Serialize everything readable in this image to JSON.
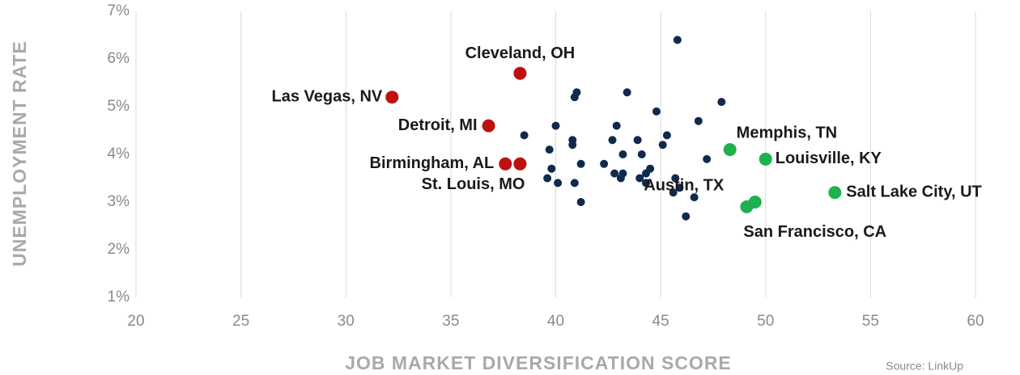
{
  "chart_data": {
    "type": "scatter",
    "x_label": "JOB MARKET DIVERSIFICATION SCORE",
    "y_label": "UNEMPLOYMENT RATE",
    "source": "Source: LinkUp",
    "xlim": [
      20,
      60
    ],
    "xticks": [
      20,
      25,
      30,
      35,
      40,
      45,
      50,
      55,
      60
    ],
    "ylim": [
      1,
      7
    ],
    "yticks": [
      {
        "value": 1,
        "label": "1%"
      },
      {
        "value": 2,
        "label": "2%"
      },
      {
        "value": 3,
        "label": "3%"
      },
      {
        "value": 4,
        "label": "4%"
      },
      {
        "value": 5,
        "label": "5%"
      },
      {
        "value": 6,
        "label": "6%"
      },
      {
        "value": 7,
        "label": "7%"
      }
    ],
    "grid": "x",
    "series": [
      {
        "color": "#0f2a4d",
        "x": [
          45.8,
          41.0,
          40.9,
          43.4,
          47.9,
          44.8,
          46.8,
          40.0,
          42.9,
          38.5,
          45.3,
          40.8,
          42.7,
          43.9,
          40.8,
          45.1,
          39.7,
          43.2,
          44.1,
          47.2,
          41.2,
          42.3,
          39.8,
          44.5,
          42.8,
          43.2,
          44.3,
          43.1,
          44.0,
          39.6,
          45.7,
          40.1,
          40.9,
          44.3,
          45.9,
          45.6,
          46.6,
          41.2,
          46.2
        ],
        "y": [
          6.4,
          5.3,
          5.2,
          5.3,
          5.1,
          4.9,
          4.7,
          4.6,
          4.6,
          4.4,
          4.4,
          4.3,
          4.3,
          4.3,
          4.2,
          4.2,
          4.1,
          4.0,
          4.0,
          3.9,
          3.8,
          3.8,
          3.7,
          3.7,
          3.6,
          3.6,
          3.6,
          3.5,
          3.5,
          3.5,
          3.5,
          3.4,
          3.4,
          3.4,
          3.3,
          3.2,
          3.1,
          3.0,
          2.7
        ]
      },
      {
        "color": "#c00f0f",
        "x": [
          32.2,
          38.3,
          36.8,
          37.6,
          38.3
        ],
        "y": [
          5.2,
          5.7,
          4.6,
          3.8,
          3.8
        ],
        "labels": [
          "Las Vegas, NV",
          "Cleveland, OH",
          "Detroit, MI",
          "Birmingham, AL",
          "St. Louis, MO"
        ]
      },
      {
        "color": "#1fb04f",
        "x": [
          48.3,
          50.0,
          53.3,
          49.5,
          49.1
        ],
        "y": [
          4.1,
          3.9,
          3.2,
          3.0,
          2.9
        ],
        "labels": [
          "Memphis, TN",
          "Louisville, KY",
          "Salt Lake City, UT",
          "Austin, TX",
          "San Francisco, CA"
        ]
      }
    ]
  }
}
